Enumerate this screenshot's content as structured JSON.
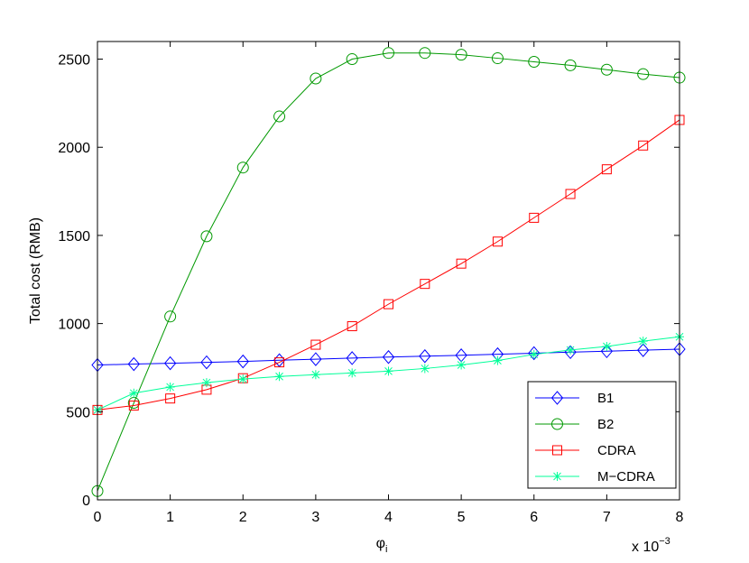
{
  "chart_data": {
    "type": "line",
    "title": "",
    "xlabel": "φ",
    "xlabel_subscript": "i",
    "x_multiplier": "x 10",
    "x_multiplier_exp": "−3",
    "ylabel": "Total cost (RMB)",
    "xlim": [
      0,
      8
    ],
    "ylim": [
      0,
      2600
    ],
    "xticks": [
      0,
      1,
      2,
      3,
      4,
      5,
      6,
      7,
      8
    ],
    "yticks": [
      0,
      500,
      1000,
      1500,
      2000,
      2500
    ],
    "grid": false,
    "legend_position": "bottom-right",
    "x": [
      0,
      0.5,
      1,
      1.5,
      2,
      2.5,
      3,
      3.5,
      4,
      4.5,
      5,
      5.5,
      6,
      6.5,
      7,
      7.5,
      8
    ],
    "series": [
      {
        "name": "B1",
        "color": "#0000ff",
        "marker": "diamond",
        "values": [
          765,
          770,
          775,
          780,
          785,
          792,
          798,
          804,
          810,
          815,
          820,
          826,
          832,
          838,
          843,
          849,
          855
        ]
      },
      {
        "name": "B2",
        "color": "#009900",
        "marker": "circle",
        "values": [
          50,
          550,
          1040,
          1495,
          1885,
          2175,
          2390,
          2500,
          2535,
          2535,
          2525,
          2505,
          2485,
          2465,
          2440,
          2415,
          2395
        ]
      },
      {
        "name": "CDRA",
        "color": "#ff0000",
        "marker": "square",
        "values": [
          510,
          535,
          575,
          625,
          690,
          780,
          880,
          985,
          1110,
          1225,
          1340,
          1465,
          1600,
          1735,
          1875,
          2010,
          2155
        ]
      },
      {
        "name": "M−CDRA",
        "color": "#00ff99",
        "marker": "star",
        "values": [
          510,
          605,
          640,
          665,
          685,
          700,
          710,
          720,
          730,
          745,
          765,
          790,
          825,
          850,
          870,
          900,
          925
        ]
      }
    ]
  }
}
